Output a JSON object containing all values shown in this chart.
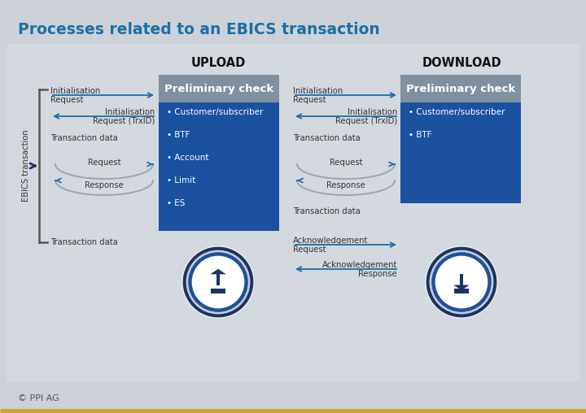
{
  "title": "Processes related to an EBICS transaction",
  "title_color": "#1a6fa8",
  "bg_color": "#cdd2d8",
  "panel_color": "#d4d9df",
  "upload_label": "UPLOAD",
  "download_label": "DOWNLOAD",
  "prelim_header_color": "#8a9aa8",
  "prelim_body_color": "#1a55a0",
  "prelim_text": "Preliminary check",
  "upload_bullets": [
    "Customer/subscriber",
    "BTF",
    "Account",
    "Limit",
    "ES"
  ],
  "download_bullets": [
    "Customer/subscriber",
    "BTF"
  ],
  "circle_dark": "#1a3560",
  "circle_mid": "#1e4fa0",
  "circle_white": "#ffffff",
  "ebics_label": "EBICS transaction",
  "arrow_color": "#1a6fa8",
  "text_color": "#333333",
  "footer": "© PPI AG",
  "gold_line": "#c8a432"
}
